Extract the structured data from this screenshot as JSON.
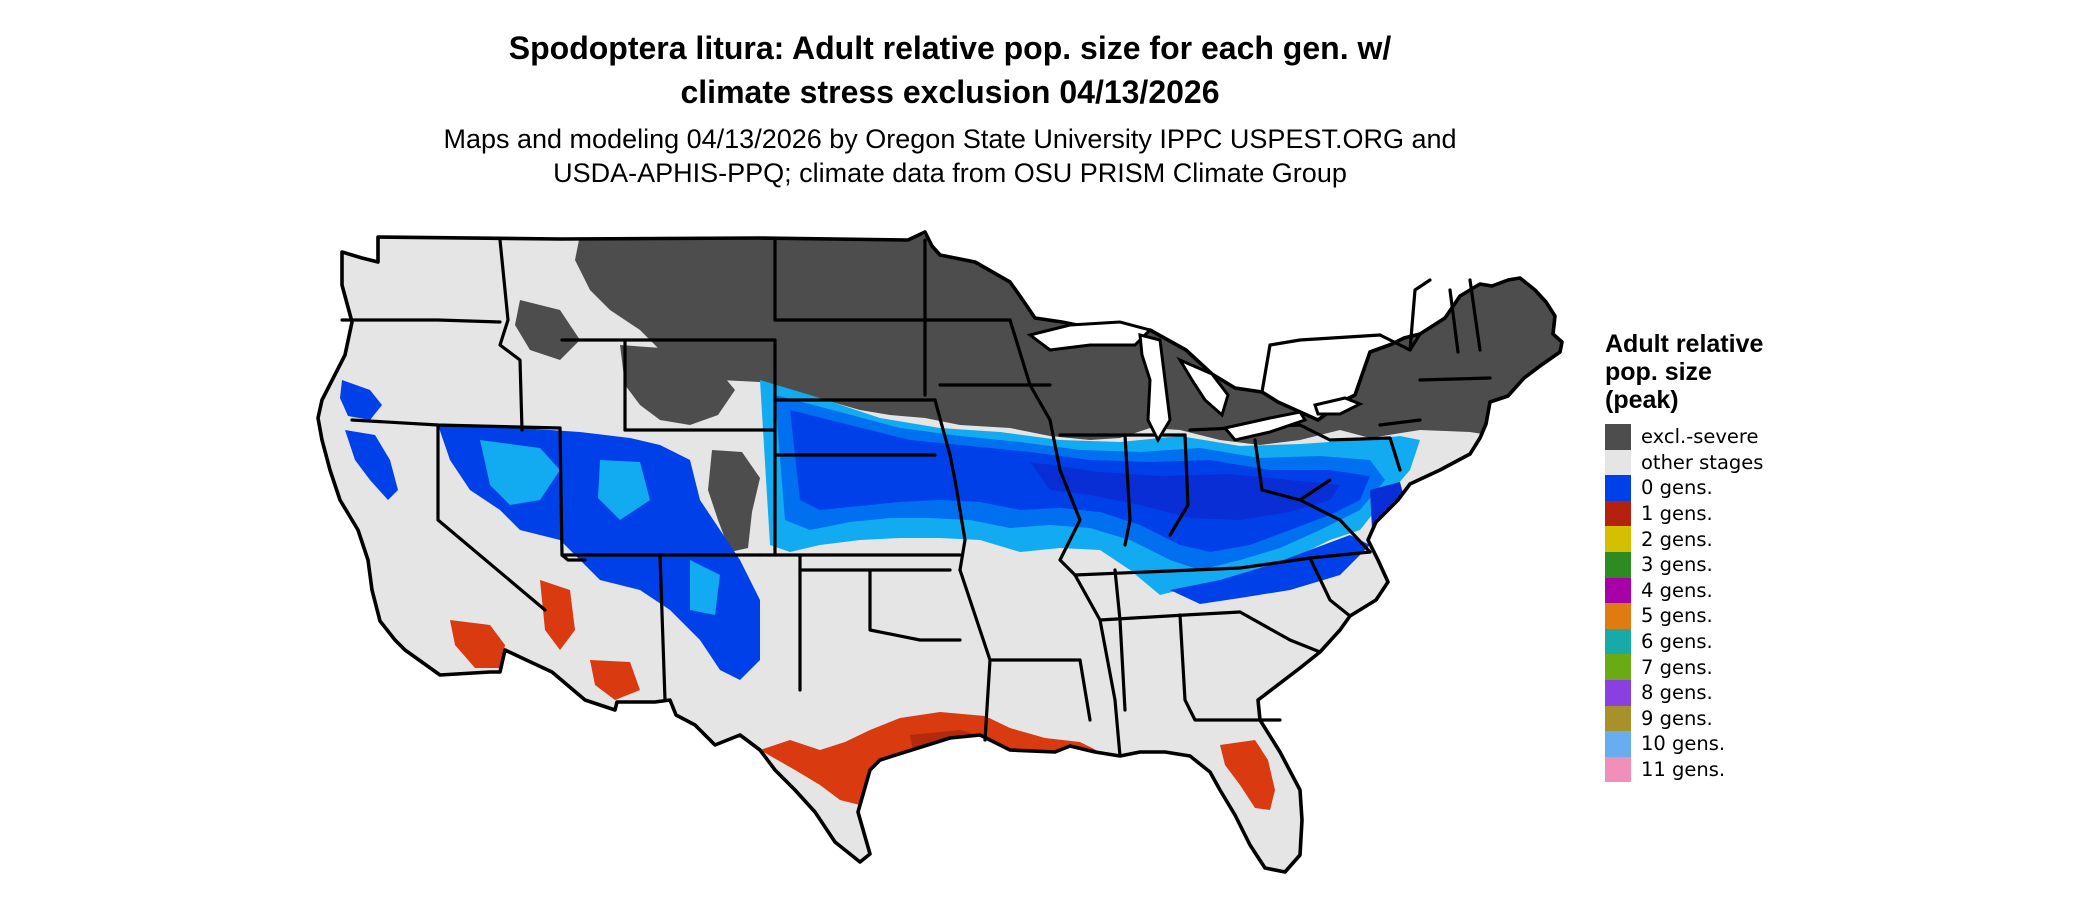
{
  "title_line1": "Spodoptera litura: Adult relative pop. size for each gen. w/",
  "title_line2": "climate stress exclusion 04/13/2026",
  "subtitle_line1": "Maps and modeling 04/13/2026 by Oregon State University IPPC USPEST.ORG and",
  "subtitle_line2": "USDA-APHIS-PPQ; climate data from OSU PRISM Climate Group",
  "map": {
    "region": "Contiguous United States",
    "colors": {
      "excluded": "#4d4d4d",
      "other": "#e5e5e5",
      "gen0_dark": "#0a2ed6",
      "gen0": "#0040e8",
      "gen0_mid": "#0070f0",
      "gen0_light": "#12aaf0",
      "gen1": "#d93a10",
      "gen1_dark": "#b42a0c",
      "border": "#000000"
    }
  },
  "legend": {
    "title_lines": [
      "Adult relative",
      "pop. size",
      "(peak)"
    ],
    "items": [
      {
        "label": "excl.-severe",
        "color": "#4d4d4d"
      },
      {
        "label": "other stages",
        "color": "#e5e5e5"
      },
      {
        "label": "0 gens.",
        "color": "#0040e8"
      },
      {
        "label": "1 gens.",
        "color": "#b5210f"
      },
      {
        "label": "2 gens.",
        "color": "#d4c000"
      },
      {
        "label": "3 gens.",
        "color": "#2e8b22"
      },
      {
        "label": "4 gens.",
        "color": "#a800a8"
      },
      {
        "label": "5 gens.",
        "color": "#e07b10"
      },
      {
        "label": "6 gens.",
        "color": "#18aaa8"
      },
      {
        "label": "7 gens.",
        "color": "#6aab14"
      },
      {
        "label": "8 gens.",
        "color": "#8a40e0"
      },
      {
        "label": "9 gens.",
        "color": "#a8902a"
      },
      {
        "label": "10 gens.",
        "color": "#6aacf0"
      },
      {
        "label": "11 gens.",
        "color": "#f090b8"
      }
    ]
  }
}
